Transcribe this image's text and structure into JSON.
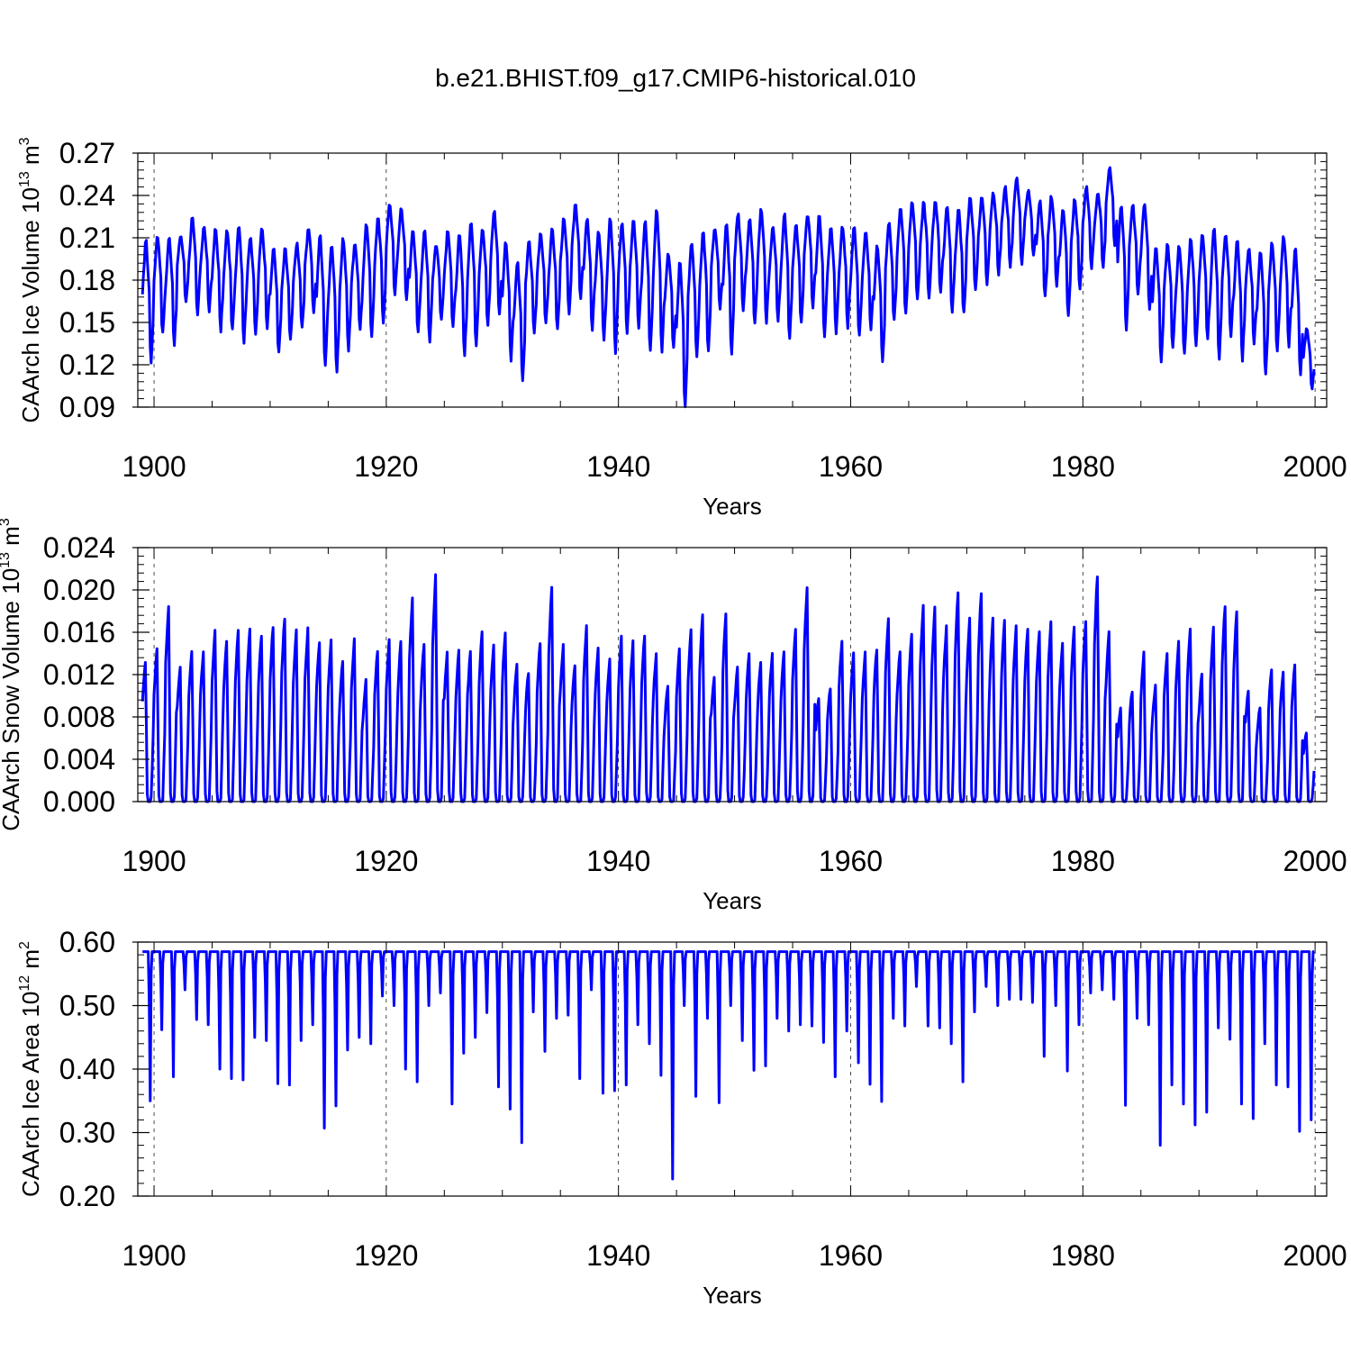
{
  "figure_title": "b.e21.BHIST.f09_g17.CMIP6-historical.010",
  "colors": {
    "line": "#0000ff",
    "axes": "#000000",
    "grid": "#000000"
  },
  "chart_data": [
    {
      "type": "line",
      "id": "ice-volume",
      "ylabel": "CAArch Ice Volume 10",
      "ylabel_exp": "13",
      "ylabel_unit": "m",
      "ylabel_unit_exp": "3",
      "xlabel": "Years",
      "xlim": [
        1898.6,
        2001.0
      ],
      "ylim": [
        0.09,
        0.27
      ],
      "yticks": [
        "0.09",
        "0.12",
        "0.15",
        "0.18",
        "0.21",
        "0.24",
        "0.27"
      ],
      "xticks": [
        "1900",
        "1920",
        "1940",
        "1960",
        "1980",
        "2000"
      ],
      "series": [
        {
          "name": "CAArch Ice Volume",
          "start_year": 1899,
          "annual_min": [
            0.122,
            0.142,
            0.135,
            0.165,
            0.155,
            0.158,
            0.144,
            0.144,
            0.136,
            0.141,
            0.147,
            0.128,
            0.137,
            0.146,
            0.158,
            0.119,
            0.116,
            0.131,
            0.146,
            0.141,
            0.149,
            0.17,
            0.165,
            0.142,
            0.137,
            0.153,
            0.146,
            0.126,
            0.134,
            0.148,
            0.155,
            0.124,
            0.108,
            0.142,
            0.15,
            0.145,
            0.157,
            0.167,
            0.145,
            0.138,
            0.129,
            0.142,
            0.147,
            0.13,
            0.129,
            0.132,
            0.09,
            0.127,
            0.129,
            0.16,
            0.128,
            0.158,
            0.149,
            0.15,
            0.152,
            0.138,
            0.149,
            0.161,
            0.14,
            0.143,
            0.147,
            0.14,
            0.146,
            0.122,
            0.151,
            0.156,
            0.166,
            0.167,
            0.17,
            0.157,
            0.156,
            0.172,
            0.178,
            0.185,
            0.189,
            0.192,
            0.197,
            0.168,
            0.177,
            0.156,
            0.173,
            0.188,
            0.19,
            0.205,
            0.144,
            0.169,
            0.159,
            0.122,
            0.133,
            0.128,
            0.132,
            0.139,
            0.125,
            0.141,
            0.124,
            0.135,
            0.112,
            0.13,
            0.133,
            0.113,
            0.103
          ],
          "annual_max": [
            0.207,
            0.211,
            0.209,
            0.211,
            0.223,
            0.217,
            0.215,
            0.214,
            0.218,
            0.21,
            0.216,
            0.202,
            0.201,
            0.205,
            0.216,
            0.21,
            0.204,
            0.208,
            0.204,
            0.218,
            0.224,
            0.233,
            0.231,
            0.215,
            0.215,
            0.204,
            0.213,
            0.212,
            0.22,
            0.216,
            0.228,
            0.206,
            0.191,
            0.206,
            0.212,
            0.215,
            0.222,
            0.233,
            0.222,
            0.213,
            0.222,
            0.219,
            0.222,
            0.221,
            0.228,
            0.198,
            0.191,
            0.205,
            0.213,
            0.216,
            0.219,
            0.226,
            0.222,
            0.229,
            0.217,
            0.226,
            0.219,
            0.226,
            0.225,
            0.217,
            0.217,
            0.216,
            0.212,
            0.203,
            0.219,
            0.231,
            0.234,
            0.234,
            0.236,
            0.231,
            0.228,
            0.237,
            0.238,
            0.241,
            0.245,
            0.251,
            0.243,
            0.235,
            0.238,
            0.23,
            0.236,
            0.245,
            0.242,
            0.259,
            0.232,
            0.232,
            0.233,
            0.202,
            0.205,
            0.203,
            0.208,
            0.212,
            0.216,
            0.21,
            0.206,
            0.202,
            0.2,
            0.205,
            0.21,
            0.201,
            0.145
          ]
        }
      ]
    },
    {
      "type": "line",
      "id": "snow-volume",
      "ylabel": "CAArch Snow Volume 10",
      "ylabel_exp": "13",
      "ylabel_unit": "m",
      "ylabel_unit_exp": "3",
      "xlabel": "Years",
      "xlim": [
        1898.6,
        2001.0
      ],
      "ylim": [
        0.0,
        0.024
      ],
      "yticks": [
        "0.000",
        "0.004",
        "0.008",
        "0.012",
        "0.016",
        "0.020",
        "0.024"
      ],
      "xticks": [
        "1900",
        "1920",
        "1940",
        "1960",
        "1980",
        "2000"
      ],
      "series": [
        {
          "name": "CAArch Snow Volume",
          "start_year": 1899,
          "annual_max": [
            0.0133,
            0.0145,
            0.0185,
            0.0128,
            0.0142,
            0.0143,
            0.0162,
            0.015,
            0.0162,
            0.0163,
            0.0157,
            0.0166,
            0.0174,
            0.0162,
            0.0163,
            0.0152,
            0.0153,
            0.0133,
            0.0152,
            0.0115,
            0.0142,
            0.0152,
            0.015,
            0.0191,
            0.015,
            0.0213,
            0.0142,
            0.0142,
            0.0142,
            0.016,
            0.0148,
            0.016,
            0.013,
            0.0123,
            0.015,
            0.0202,
            0.015,
            0.013,
            0.0165,
            0.0145,
            0.0135,
            0.0155,
            0.015,
            0.0158,
            0.014,
            0.011,
            0.0143,
            0.0163,
            0.0178,
            0.0118,
            0.0178,
            0.0128,
            0.014,
            0.0133,
            0.014,
            0.014,
            0.0163,
            0.0202,
            0.0098,
            0.0108,
            0.0153,
            0.014,
            0.014,
            0.0145,
            0.0173,
            0.0142,
            0.016,
            0.0185,
            0.0184,
            0.0165,
            0.0196,
            0.0172,
            0.0198,
            0.0172,
            0.0172,
            0.0165,
            0.0163,
            0.016,
            0.017,
            0.015,
            0.0165,
            0.0172,
            0.0213,
            0.016,
            0.009,
            0.0105,
            0.014,
            0.011,
            0.014,
            0.015,
            0.0165,
            0.0122,
            0.0165,
            0.0185,
            0.0178,
            0.0105,
            0.009,
            0.0125,
            0.0123,
            0.013,
            0.0065
          ]
        }
      ]
    },
    {
      "type": "line",
      "id": "ice-area",
      "ylabel": "CAArch Ice Area 10",
      "ylabel_exp": "12",
      "ylabel_unit": "m",
      "ylabel_unit_exp": "2",
      "xlabel": "Years",
      "xlim": [
        1898.6,
        2001.0
      ],
      "ylim": [
        0.2,
        0.6
      ],
      "yticks": [
        "0.20",
        "0.30",
        "0.40",
        "0.50",
        "0.60"
      ],
      "xticks": [
        "1900",
        "1920",
        "1940",
        "1960",
        "1980",
        "2000"
      ],
      "series": [
        {
          "name": "CAArch Ice Area",
          "start_year": 1899,
          "plateau": 0.585,
          "annual_min": [
            0.35,
            0.462,
            0.388,
            0.525,
            0.478,
            0.47,
            0.4,
            0.385,
            0.383,
            0.45,
            0.445,
            0.377,
            0.375,
            0.445,
            0.47,
            0.307,
            0.342,
            0.43,
            0.45,
            0.44,
            0.515,
            0.5,
            0.4,
            0.38,
            0.5,
            0.52,
            0.345,
            0.425,
            0.45,
            0.489,
            0.372,
            0.337,
            0.284,
            0.49,
            0.428,
            0.48,
            0.485,
            0.385,
            0.525,
            0.362,
            0.366,
            0.375,
            0.47,
            0.44,
            0.39,
            0.227,
            0.5,
            0.357,
            0.48,
            0.347,
            0.5,
            0.445,
            0.398,
            0.405,
            0.48,
            0.46,
            0.47,
            0.468,
            0.442,
            0.388,
            0.46,
            0.41,
            0.376,
            0.349,
            0.48,
            0.468,
            0.53,
            0.468,
            0.465,
            0.44,
            0.38,
            0.49,
            0.53,
            0.5,
            0.51,
            0.51,
            0.505,
            0.42,
            0.5,
            0.397,
            0.47,
            0.52,
            0.525,
            0.51,
            0.343,
            0.48,
            0.47,
            0.28,
            0.375,
            0.345,
            0.312,
            0.332,
            0.465,
            0.447,
            0.345,
            0.322,
            0.44,
            0.375,
            0.372,
            0.302,
            0.32
          ]
        }
      ]
    }
  ]
}
